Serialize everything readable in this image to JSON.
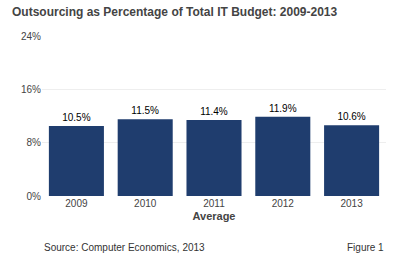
{
  "chart_data": {
    "type": "bar",
    "title": "Outsourcing as Percentage of Total IT Budget: 2009-2013",
    "xlabel": "Average",
    "categories": [
      "2009",
      "2010",
      "2011",
      "2012",
      "2013"
    ],
    "values": [
      10.5,
      11.5,
      11.4,
      11.9,
      10.6
    ],
    "value_labels": [
      "10.5%",
      "11.5%",
      "11.4%",
      "11.9%",
      "10.6%"
    ],
    "data_labels": true,
    "color": "#1F3D6E",
    "ylim": [
      0,
      24
    ],
    "yticks": [
      {
        "value": 0,
        "label": "0%"
      },
      {
        "value": 8,
        "label": "8%"
      },
      {
        "value": 16,
        "label": "16%"
      },
      {
        "value": 24,
        "label": "24%"
      }
    ],
    "grid": true,
    "annotations": [
      "Source: Computer Economics, 2013",
      "Figure 1"
    ]
  }
}
